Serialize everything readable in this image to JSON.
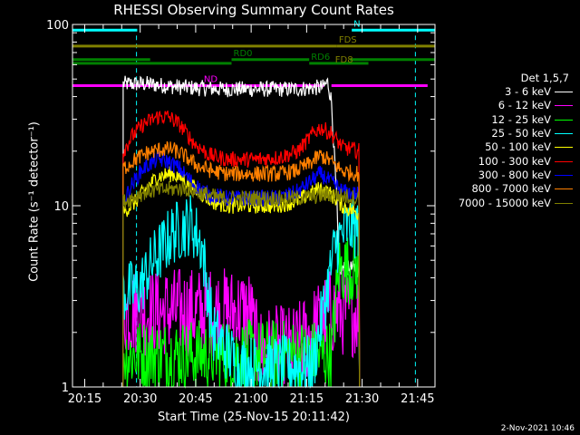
{
  "chart_data": {
    "type": "line",
    "title": "RHESSI Observing Summary Count Rates",
    "xlabel": "Start Time (25-Nov-15 20:11:42)",
    "ylabel": "Count Rate (s⁻¹ detector⁻¹)",
    "y_scale": "log",
    "ylim": [
      1,
      100
    ],
    "xlim_minutes": [
      0,
      98
    ],
    "x_ticks": [
      {
        "label": "20:15",
        "minutes": 3.3
      },
      {
        "label": "20:30",
        "minutes": 18.3
      },
      {
        "label": "20:45",
        "minutes": 33.3
      },
      {
        "label": "21:00",
        "minutes": 48.3
      },
      {
        "label": "21:15",
        "minutes": 63.3
      },
      {
        "label": "21:30",
        "minutes": 78.3
      },
      {
        "label": "21:45",
        "minutes": 93.3
      }
    ],
    "y_ticks": [
      {
        "label": "1",
        "value": 1
      },
      {
        "label": "10",
        "value": 10
      },
      {
        "label": "100",
        "value": 100
      }
    ],
    "legend_title": "Det 1,5,7",
    "legend_position": "right",
    "series": [
      {
        "name": "3 - 6 keV",
        "color": "#ffffff",
        "points": [
          [
            13.7,
            47
          ],
          [
            20,
            47
          ],
          [
            30,
            45
          ],
          [
            40,
            44
          ],
          [
            50,
            44
          ],
          [
            60,
            44
          ],
          [
            67.7,
            45
          ],
          [
            69,
            48
          ],
          [
            70,
            38
          ],
          [
            71.5,
            10
          ],
          [
            72,
            4.5
          ],
          [
            75,
            4.5
          ],
          [
            77.6,
            4.5
          ]
        ]
      },
      {
        "name": "6 - 12 keV",
        "color": "#ff00ff",
        "points": [
          [
            13.7,
            2.6
          ],
          [
            20,
            2.6
          ],
          [
            30,
            2.6
          ],
          [
            40,
            2.6
          ],
          [
            48,
            2.6
          ],
          [
            50,
            1.6
          ],
          [
            60,
            1.6
          ],
          [
            70,
            2.6
          ],
          [
            77.6,
            2.6
          ]
        ]
      },
      {
        "name": "12 - 25 keV",
        "color": "#00ff00",
        "points": [
          [
            13.7,
            1.5
          ],
          [
            20,
            1.5
          ],
          [
            30,
            1.5
          ],
          [
            40,
            1.5
          ],
          [
            50,
            1.5
          ],
          [
            60,
            1.5
          ],
          [
            70,
            1.5
          ],
          [
            72,
            4.5
          ],
          [
            77.6,
            4.5
          ]
        ]
      },
      {
        "name": "25 - 50 keV",
        "color": "#00ffff",
        "points": [
          [
            13.7,
            3.3
          ],
          [
            18,
            3.5
          ],
          [
            22,
            5
          ],
          [
            27,
            7
          ],
          [
            32,
            8
          ],
          [
            35,
            6
          ],
          [
            38,
            2
          ],
          [
            45,
            1.3
          ],
          [
            55,
            1.3
          ],
          [
            65,
            1.3
          ],
          [
            71,
            6
          ],
          [
            74,
            7.5
          ],
          [
            77.6,
            7.5
          ]
        ]
      },
      {
        "name": "50 - 100 keV",
        "color": "#ffff00",
        "points": [
          [
            13.7,
            9.2
          ],
          [
            17,
            10.5
          ],
          [
            20,
            12.5
          ],
          [
            23,
            14.5
          ],
          [
            27,
            15
          ],
          [
            30,
            14
          ],
          [
            34,
            12
          ],
          [
            38,
            10.5
          ],
          [
            42,
            10
          ],
          [
            50,
            10
          ],
          [
            55,
            10
          ],
          [
            60,
            10.5
          ],
          [
            64,
            11.5
          ],
          [
            67,
            12.5
          ],
          [
            70,
            11.5
          ],
          [
            73,
            10
          ],
          [
            77.6,
            9
          ]
        ]
      },
      {
        "name": "100 - 300 keV",
        "color": "#ff0000",
        "points": [
          [
            13.7,
            20
          ],
          [
            16,
            24
          ],
          [
            19,
            28
          ],
          [
            23,
            31
          ],
          [
            26,
            31
          ],
          [
            29,
            28
          ],
          [
            33,
            22
          ],
          [
            37,
            19
          ],
          [
            42,
            18
          ],
          [
            50,
            18
          ],
          [
            56,
            18.5
          ],
          [
            61,
            20
          ],
          [
            65,
            25
          ],
          [
            67,
            27
          ],
          [
            70,
            25
          ],
          [
            73,
            21
          ],
          [
            77.6,
            20
          ]
        ]
      },
      {
        "name": "300 - 800 keV",
        "color": "#0000ff",
        "points": [
          [
            13.7,
            10.5
          ],
          [
            16,
            13
          ],
          [
            19,
            16
          ],
          [
            23,
            18
          ],
          [
            26,
            17.5
          ],
          [
            29,
            16
          ],
          [
            33,
            13
          ],
          [
            37,
            11.5
          ],
          [
            42,
            11
          ],
          [
            50,
            11
          ],
          [
            56,
            11
          ],
          [
            61,
            12
          ],
          [
            65,
            14
          ],
          [
            67,
            15
          ],
          [
            70,
            13.5
          ],
          [
            73,
            12
          ],
          [
            77.6,
            11.5
          ]
        ]
      },
      {
        "name": "800 - 7000 keV",
        "color": "#ff8000",
        "points": [
          [
            13.7,
            16
          ],
          [
            17,
            18
          ],
          [
            20,
            19.5
          ],
          [
            24,
            20.5
          ],
          [
            27,
            20.5
          ],
          [
            30,
            19
          ],
          [
            34,
            16.5
          ],
          [
            38,
            15.5
          ],
          [
            42,
            15
          ],
          [
            50,
            15
          ],
          [
            56,
            15
          ],
          [
            60,
            15.5
          ],
          [
            64,
            17
          ],
          [
            67,
            19
          ],
          [
            70,
            17.5
          ],
          [
            73,
            15.5
          ],
          [
            77.6,
            15
          ]
        ]
      },
      {
        "name": "7000 - 15000 keV",
        "color": "#808000",
        "points": [
          [
            13.7,
            10.5
          ],
          [
            20,
            12
          ],
          [
            30,
            12.5
          ],
          [
            40,
            11
          ],
          [
            50,
            11
          ],
          [
            60,
            11
          ],
          [
            70,
            11.5
          ],
          [
            77.6,
            11
          ]
        ]
      }
    ],
    "flags": [
      {
        "label": "N",
        "color": "#00ffff",
        "segments": [
          [
            0,
            17.5
          ],
          [
            75.5,
            98
          ]
        ],
        "y": 93,
        "dashed_lines_minutes": [
          17.3,
          92.7
        ]
      },
      {
        "label": "FDS",
        "color": "#808000",
        "segments": [
          [
            0,
            71.5
          ],
          [
            71.5,
            98
          ]
        ],
        "y": 76
      },
      {
        "label": "RD0",
        "color": "#008000",
        "segments": [
          [
            0,
            21
          ],
          [
            43,
            64
          ],
          [
            75,
            98
          ]
        ],
        "y": 64
      },
      {
        "label": "RD6",
        "color": "#008000",
        "segments": [
          [
            0,
            43
          ],
          [
            64,
            80
          ]
        ],
        "y": 61
      },
      {
        "label": "FD8",
        "color": "#808000",
        "y": 59
      },
      {
        "label": "ND",
        "color": "#ff00ff",
        "segments": [
          [
            0,
            35
          ],
          [
            35,
            68
          ],
          [
            70,
            96
          ]
        ],
        "y": 46
      }
    ]
  },
  "footer": {
    "datestamp": "2-Nov-2021 10:46"
  }
}
